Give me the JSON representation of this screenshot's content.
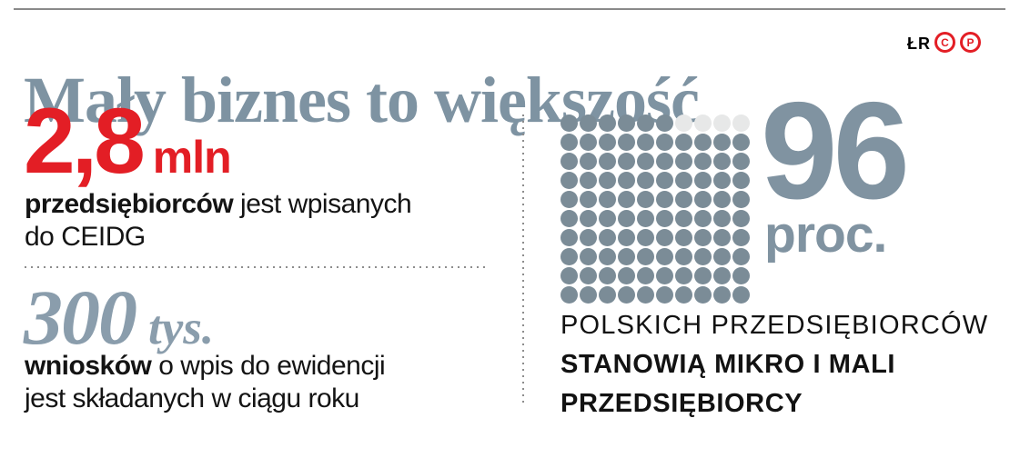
{
  "header": {
    "title": "Mały biznes to większość",
    "credit": "ŁR",
    "copyright_marks": [
      "C",
      "P"
    ]
  },
  "stats_left": [
    {
      "value": "2,8",
      "unit": "mln",
      "line1_bold": "przedsiębiorców",
      "line1_rest": " jest wpisanych",
      "line2": "do CEIDG"
    },
    {
      "value": "300",
      "unit": "tys.",
      "line1_bold": "wniosków",
      "line1_rest": " o wpis do ewidencji",
      "line2": "jest składanych w ciągu roku"
    }
  ],
  "right": {
    "big_value": "96",
    "big_unit": "proc.",
    "caption_line1": "POLSKICH PRZEDSIĘBIORCÓW",
    "caption_line2": "STANOWIĄ MIKRO I MALI",
    "caption_line3": "PRZEDSIĘBIORCY"
  },
  "chart_data": {
    "type": "waffle",
    "title": "Mały biznes to większość",
    "percent": 96,
    "unit_label": "proc.",
    "grid_rows": 10,
    "grid_cols": 10,
    "filled_dots": 96,
    "empty_dots": 4,
    "empty_location": "top row, rightmost 4 cells",
    "annotation": "96 proc. polskich przedsiębiorców stanowią mikro i mali przedsiębiorcy",
    "related_stats": [
      {
        "value": "2,8 mln",
        "label": "przedsiębiorców jest wpisanych do CEIDG"
      },
      {
        "value": "300 tys.",
        "label": "wniosków o wpis do ewidencji jest składanych w ciągu roku"
      }
    ],
    "colors": {
      "filled": "#7b8c97",
      "empty": "#e7e8e8",
      "accent_red": "#e31e25",
      "accent_slate": "#8093a1",
      "title_slate": "#7e93a2"
    },
    "legend_position": "none",
    "grid": false
  }
}
